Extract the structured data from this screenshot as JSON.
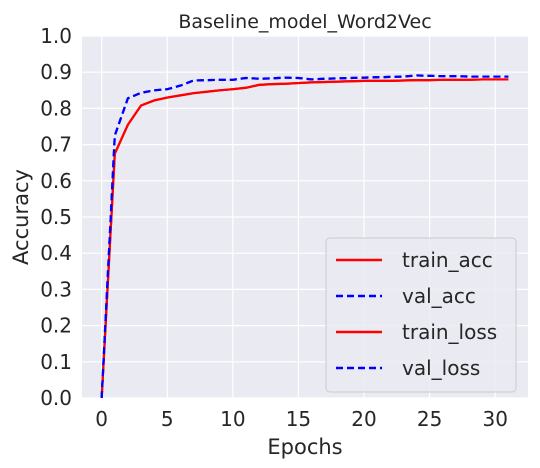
{
  "chart_data": {
    "type": "line",
    "title": "Baseline_model_Word2Vec",
    "xlabel": "Epochs",
    "ylabel": "Accuracy",
    "xlim": [
      -1.5,
      32.5
    ],
    "ylim": [
      0.0,
      1.0
    ],
    "xticks": [
      0,
      5,
      10,
      15,
      20,
      25,
      30
    ],
    "yticks": [
      0.0,
      0.1,
      0.2,
      0.3,
      0.4,
      0.5,
      0.6,
      0.7,
      0.8,
      0.9,
      1.0
    ],
    "ytick_labels": [
      "0.0",
      "0.1",
      "0.2",
      "0.3",
      "0.4",
      "0.5",
      "0.6",
      "0.7",
      "0.8",
      "0.9",
      "1.0"
    ],
    "xtick_labels": [
      "0",
      "5",
      "10",
      "15",
      "20",
      "25",
      "30"
    ],
    "grid": true,
    "legend_position": "lower-right",
    "x": [
      0,
      1,
      2,
      3,
      4,
      5,
      6,
      7,
      8,
      9,
      10,
      11,
      12,
      13,
      14,
      15,
      16,
      17,
      18,
      19,
      20,
      21,
      22,
      23,
      24,
      25,
      26,
      27,
      28,
      29,
      30,
      31
    ],
    "series": [
      {
        "name": "train_acc",
        "color": "#ff0000",
        "style": "solid",
        "values": [
          0.0,
          0.675,
          0.755,
          0.808,
          0.822,
          0.83,
          0.836,
          0.842,
          0.846,
          0.85,
          0.853,
          0.857,
          0.865,
          0.867,
          0.868,
          0.87,
          0.872,
          0.873,
          0.874,
          0.875,
          0.876,
          0.876,
          0.876,
          0.877,
          0.878,
          0.878,
          0.879,
          0.879,
          0.879,
          0.88,
          0.88,
          0.88
        ]
      },
      {
        "name": "val_acc",
        "color": "#0000ff",
        "style": "dashed",
        "values": [
          0.0,
          0.725,
          0.828,
          0.843,
          0.85,
          0.853,
          0.863,
          0.877,
          0.878,
          0.879,
          0.879,
          0.884,
          0.882,
          0.883,
          0.885,
          0.884,
          0.88,
          0.882,
          0.883,
          0.884,
          0.885,
          0.886,
          0.887,
          0.888,
          0.891,
          0.89,
          0.889,
          0.889,
          0.888,
          0.888,
          0.888,
          0.888
        ]
      },
      {
        "name": "train_loss",
        "color": "#ff0000",
        "style": "solid",
        "values": [
          0.0,
          0.675,
          0.755,
          0.808,
          0.822,
          0.83,
          0.836,
          0.842,
          0.846,
          0.85,
          0.853,
          0.857,
          0.865,
          0.867,
          0.868,
          0.87,
          0.872,
          0.873,
          0.874,
          0.875,
          0.876,
          0.876,
          0.876,
          0.877,
          0.878,
          0.878,
          0.879,
          0.879,
          0.879,
          0.88,
          0.88,
          0.88
        ]
      },
      {
        "name": "val_loss",
        "color": "#0000ff",
        "style": "dashed",
        "values": [
          0.0,
          0.725,
          0.828,
          0.843,
          0.85,
          0.853,
          0.863,
          0.877,
          0.878,
          0.879,
          0.879,
          0.884,
          0.882,
          0.883,
          0.885,
          0.884,
          0.88,
          0.882,
          0.883,
          0.884,
          0.885,
          0.886,
          0.887,
          0.888,
          0.891,
          0.89,
          0.889,
          0.889,
          0.888,
          0.888,
          0.888,
          0.888
        ]
      }
    ],
    "colors": {
      "background": "#eaeaf2",
      "grid": "#ffffff",
      "text": "#262626"
    }
  }
}
